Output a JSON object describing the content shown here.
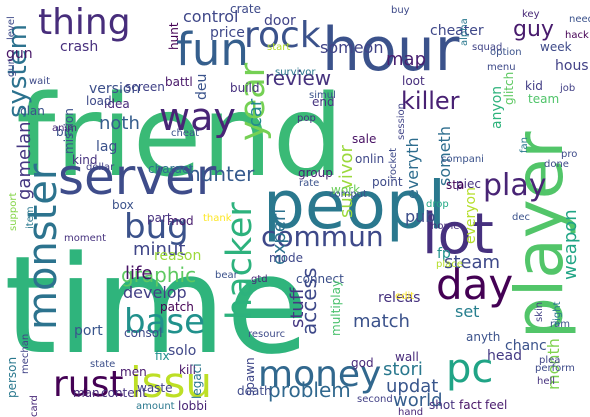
{
  "word_cloud": {
    "background": "#ffffff",
    "palette": [
      "#440154",
      "#482878",
      "#3e4a89",
      "#31688e",
      "#26828e",
      "#1f9e89",
      "#35b779",
      "#6ece58",
      "#b5de2b",
      "#fde725"
    ],
    "words": [
      {
        "text": "friend",
        "color": "#3aba76"
      },
      {
        "text": "time",
        "color": "#2fb47c"
      },
      {
        "text": "peopl",
        "color": "#2a788e"
      },
      {
        "text": "hour",
        "color": "#3b528b"
      },
      {
        "text": "player",
        "color": "#52c569"
      },
      {
        "text": "server",
        "color": "#3e4c8a"
      },
      {
        "text": "lot",
        "color": "#46307e"
      },
      {
        "text": "monster",
        "color": "#2c738e"
      },
      {
        "text": "issu",
        "color": "#bddf26"
      },
      {
        "text": "fun",
        "color": "#355f8d"
      },
      {
        "text": "rock",
        "color": "#3b528b"
      },
      {
        "text": "thing",
        "color": "#472d7b"
      },
      {
        "text": "way",
        "color": "#482576"
      },
      {
        "text": "day",
        "color": "#440154"
      },
      {
        "text": "base",
        "color": "#21918c"
      },
      {
        "text": "rust",
        "color": "#440154"
      },
      {
        "text": "pc",
        "color": "#20a486"
      },
      {
        "text": "money",
        "color": "#31688e"
      },
      {
        "text": "bug",
        "color": "#3b528b"
      },
      {
        "text": "hacker",
        "color": "#2db27d"
      },
      {
        "text": "commun",
        "color": "#3e4989"
      },
      {
        "text": "year",
        "color": "#75d054"
      },
      {
        "text": "play",
        "color": "#482475"
      },
      {
        "text": "review",
        "color": "#46327e"
      },
      {
        "text": "killer",
        "color": "#482173"
      },
      {
        "text": "guy",
        "color": "#481b6d"
      },
      {
        "text": "cheater",
        "color": "#3f4889"
      },
      {
        "text": "survivor",
        "color": "#9bd93c"
      },
      {
        "text": "stori",
        "color": "#2a788e"
      },
      {
        "text": "problem",
        "color": "#31688e"
      },
      {
        "text": "graphic",
        "color": "#5ec962"
      },
      {
        "text": "steam",
        "color": "#3e4989"
      },
      {
        "text": "match",
        "color": "#3b528b"
      },
      {
        "text": "system",
        "color": "#2c728e"
      },
      {
        "text": "hunter",
        "color": "#375b8d"
      },
      {
        "text": "gamelan",
        "color": "#453781"
      },
      {
        "text": "updat",
        "color": "#39568c"
      },
      {
        "text": "world",
        "color": "#355e8d"
      },
      {
        "text": "map",
        "color": "#481f70"
      },
      {
        "text": "access",
        "color": "#3e4989"
      },
      {
        "text": "stuff",
        "color": "#453882"
      },
      {
        "text": "weapon",
        "color": "#21a585"
      },
      {
        "text": "month",
        "color": "#7fd34e"
      },
      {
        "text": "experi",
        "color": "#2c718e"
      },
      {
        "text": "minut",
        "color": "#404688"
      },
      {
        "text": "develop",
        "color": "#423f85"
      },
      {
        "text": "set",
        "color": "#277f8e"
      },
      {
        "text": "life",
        "color": "#471365"
      },
      {
        "text": "control",
        "color": "#3f4788"
      },
      {
        "text": "someon",
        "color": "#414487"
      },
      {
        "text": "version",
        "color": "#3c4f8a"
      },
      {
        "text": "pub",
        "color": "#3d4e8a"
      },
      {
        "text": "car",
        "color": "#23898e"
      },
      {
        "text": "noth",
        "color": "#365d8d"
      },
      {
        "text": "hous",
        "color": "#424186"
      },
      {
        "text": "everyon",
        "color": "#b5de2b"
      },
      {
        "text": "someth",
        "color": "#2e6e8e"
      },
      {
        "text": "everyth",
        "color": "#2e6d8e"
      },
      {
        "text": "gun",
        "color": "#481668"
      },
      {
        "text": "crash",
        "color": "#472f7d"
      },
      {
        "text": "price",
        "color": "#3f4889"
      },
      {
        "text": "door",
        "color": "#404387"
      },
      {
        "text": "crate",
        "color": "#3e4a89"
      },
      {
        "text": "screen",
        "color": "#414287"
      },
      {
        "text": "battl",
        "color": "#481769"
      },
      {
        "text": "build",
        "color": "#46307e"
      },
      {
        "text": "deu",
        "color": "#3a538b"
      },
      {
        "text": "loot",
        "color": "#472e7c"
      },
      {
        "text": "team",
        "color": "#50c46a"
      },
      {
        "text": "kid",
        "color": "#433e85"
      },
      {
        "text": "anyon",
        "color": "#2eb37c"
      },
      {
        "text": "end",
        "color": "#46337f"
      },
      {
        "text": "lag",
        "color": "#3b518b"
      },
      {
        "text": "mission",
        "color": "#3c508b"
      },
      {
        "text": "reason",
        "color": "#9dd93b"
      },
      {
        "text": "port",
        "color": "#39558c"
      },
      {
        "text": "fp",
        "color": "#20928c"
      },
      {
        "text": "connect",
        "color": "#3c4f8a"
      },
      {
        "text": "solo",
        "color": "#3f4788"
      },
      {
        "text": "fix",
        "color": "#21908d"
      },
      {
        "text": "multiplay",
        "color": "#4ac16d"
      },
      {
        "text": "releas",
        "color": "#46327e"
      },
      {
        "text": "mode",
        "color": "#3f4889"
      },
      {
        "text": "group",
        "color": "#482374"
      },
      {
        "text": "work",
        "color": "#6ccd5a"
      },
      {
        "text": "point",
        "color": "#3e4a89"
      },
      {
        "text": "sale",
        "color": "#471063"
      },
      {
        "text": "mod",
        "color": "#481d6f"
      },
      {
        "text": "box",
        "color": "#3b528b"
      },
      {
        "text": "part",
        "color": "#46307e"
      },
      {
        "text": "charact",
        "color": "#2d708e"
      },
      {
        "text": "onlin",
        "color": "#3f4889"
      },
      {
        "text": "head",
        "color": "#443983"
      },
      {
        "text": "chanc",
        "color": "#3b528b"
      },
      {
        "text": "god",
        "color": "#482979"
      },
      {
        "text": "wall",
        "color": "#472a7a"
      },
      {
        "text": "kill",
        "color": "#481467"
      },
      {
        "text": "men",
        "color": "#481a6c"
      },
      {
        "text": "content",
        "color": "#46327e"
      },
      {
        "text": "man",
        "color": "#482878"
      },
      {
        "text": "second",
        "color": "#424086"
      },
      {
        "text": "shot",
        "color": "#46327e"
      },
      {
        "text": "fact",
        "color": "#471365"
      },
      {
        "text": "feel",
        "color": "#481b6d"
      },
      {
        "text": "lobbi",
        "color": "#482475"
      },
      {
        "text": "amount",
        "color": "#2a788e"
      },
      {
        "text": "death",
        "color": "#3e4a89"
      },
      {
        "text": "spawn",
        "color": "#3f4788"
      },
      {
        "text": "legaci",
        "color": "#2a788e"
      },
      {
        "text": "waste",
        "color": "#424086"
      },
      {
        "text": "state",
        "color": "#3c4f8a"
      },
      {
        "text": "consol",
        "color": "#3e4a89"
      },
      {
        "text": "patch",
        "color": "#440154"
      },
      {
        "text": "thank",
        "color": "#fde725"
      },
      {
        "text": "moment",
        "color": "#46327e"
      },
      {
        "text": "cheat",
        "color": "#3b528b"
      },
      {
        "text": "idea",
        "color": "#472a7a"
      },
      {
        "text": "load",
        "color": "#3e4a89"
      },
      {
        "text": "clan",
        "color": "#3b528b"
      },
      {
        "text": "wait",
        "color": "#3e4a89"
      },
      {
        "text": "bit",
        "color": "#3b528b"
      },
      {
        "text": "kind",
        "color": "#46327e"
      },
      {
        "text": "dollar",
        "color": "#424086"
      },
      {
        "text": "item",
        "color": "#2a788e"
      },
      {
        "text": "support",
        "color": "#86d549"
      },
      {
        "text": "person",
        "color": "#2a788e"
      },
      {
        "text": "mechan",
        "color": "#414487"
      },
      {
        "text": "card",
        "color": "#482878"
      },
      {
        "text": "level",
        "color": "#3e4a89"
      },
      {
        "text": "hunt",
        "color": "#440154"
      },
      {
        "text": "anim",
        "color": "#482878"
      },
      {
        "text": "rate",
        "color": "#3b528b"
      },
      {
        "text": "pop",
        "color": "#46327e"
      },
      {
        "text": "simul",
        "color": "#3b528b"
      },
      {
        "text": "start",
        "color": "#b5de2b"
      },
      {
        "text": "survivor",
        "color": "#2a788e"
      },
      {
        "text": "rocket",
        "color": "#3e4a89"
      },
      {
        "text": "drop",
        "color": "#22a884"
      },
      {
        "text": "piec",
        "color": "#46327e"
      },
      {
        "text": "session",
        "color": "#414487"
      },
      {
        "text": "compani",
        "color": "#3b528b"
      },
      {
        "text": "sta",
        "color": "#440154"
      },
      {
        "text": "home",
        "color": "#472d7b"
      },
      {
        "text": "dec",
        "color": "#3b528b"
      },
      {
        "text": "done",
        "color": "#3e4a89"
      },
      {
        "text": "glitch",
        "color": "#5ec962"
      },
      {
        "text": "week",
        "color": "#3e4a89"
      },
      {
        "text": "job",
        "color": "#424086"
      },
      {
        "text": "option",
        "color": "#3b528b"
      },
      {
        "text": "menu",
        "color": "#3e4a89"
      },
      {
        "text": "hack",
        "color": "#440154"
      },
      {
        "text": "key",
        "color": "#482878"
      },
      {
        "text": "squad",
        "color": "#414487"
      },
      {
        "text": "alpha",
        "color": "#2a788e"
      },
      {
        "text": "buy",
        "color": "#3e4a89"
      },
      {
        "text": "comput",
        "color": "#3b528b"
      },
      {
        "text": "edit",
        "color": "#fde725"
      },
      {
        "text": "plea",
        "color": "#414487"
      },
      {
        "text": "perform",
        "color": "#3e4a89"
      },
      {
        "text": "hand",
        "color": "#482878"
      },
      {
        "text": "ram",
        "color": "#3b528b"
      },
      {
        "text": "hell",
        "color": "#46327e"
      },
      {
        "text": "anyth",
        "color": "#3b528b"
      },
      {
        "text": "skin",
        "color": "#424086"
      },
      {
        "text": "right",
        "color": "#2a788e"
      },
      {
        "text": "place",
        "color": "#b5de2b"
      },
      {
        "text": "bear",
        "color": "#3b528b"
      },
      {
        "text": "gtd",
        "color": "#482878"
      },
      {
        "text": "resourc",
        "color": "#3e4a89"
      },
      {
        "text": "pro",
        "color": "#3e4a89"
      },
      {
        "text": "need",
        "color": "#3b528b"
      },
      {
        "text": "fan",
        "color": "#2a788e"
      },
      {
        "text": "gun",
        "color": "#3e4a89"
      }
    ]
  }
}
